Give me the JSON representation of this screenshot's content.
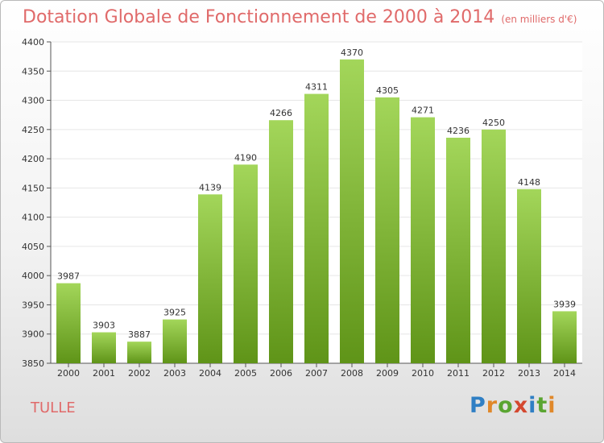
{
  "title": "Dotation Globale de Fonctionnement de 2000 à 2014",
  "subtitle": "(en milliers d'€)",
  "commune": "TULLE",
  "logo": {
    "letters": [
      "P",
      "r",
      "o",
      "x",
      "i",
      "t",
      "i"
    ],
    "colors": [
      "#2f7fc4",
      "#e0882a",
      "#5aa531",
      "#d4482f",
      "#2f7fc4",
      "#5aa531",
      "#e0882a"
    ]
  },
  "colors": {
    "bar_top": "#a3d65a",
    "bar_bottom": "#5f9418",
    "text": "#e06a6a",
    "axis": "#555555",
    "grid": "#e6e6e6"
  },
  "chart_data": {
    "type": "bar",
    "title": "Dotation Globale de Fonctionnement de 2000 à 2014",
    "subtitle": "(en milliers d'€)",
    "xlabel": "",
    "ylabel": "",
    "categories": [
      "2000",
      "2001",
      "2002",
      "2003",
      "2004",
      "2005",
      "2006",
      "2007",
      "2008",
      "2009",
      "2010",
      "2011",
      "2012",
      "2013",
      "2014"
    ],
    "values": [
      3987,
      3903,
      3887,
      3925,
      4139,
      4190,
      4266,
      4311,
      4370,
      4305,
      4271,
      4236,
      4250,
      4148,
      3939
    ],
    "ylim": [
      3850,
      4400
    ],
    "yticks": [
      3850,
      3900,
      3950,
      4000,
      4050,
      4100,
      4150,
      4200,
      4250,
      4300,
      4350,
      4400
    ],
    "grid": true,
    "data_labels": true
  }
}
